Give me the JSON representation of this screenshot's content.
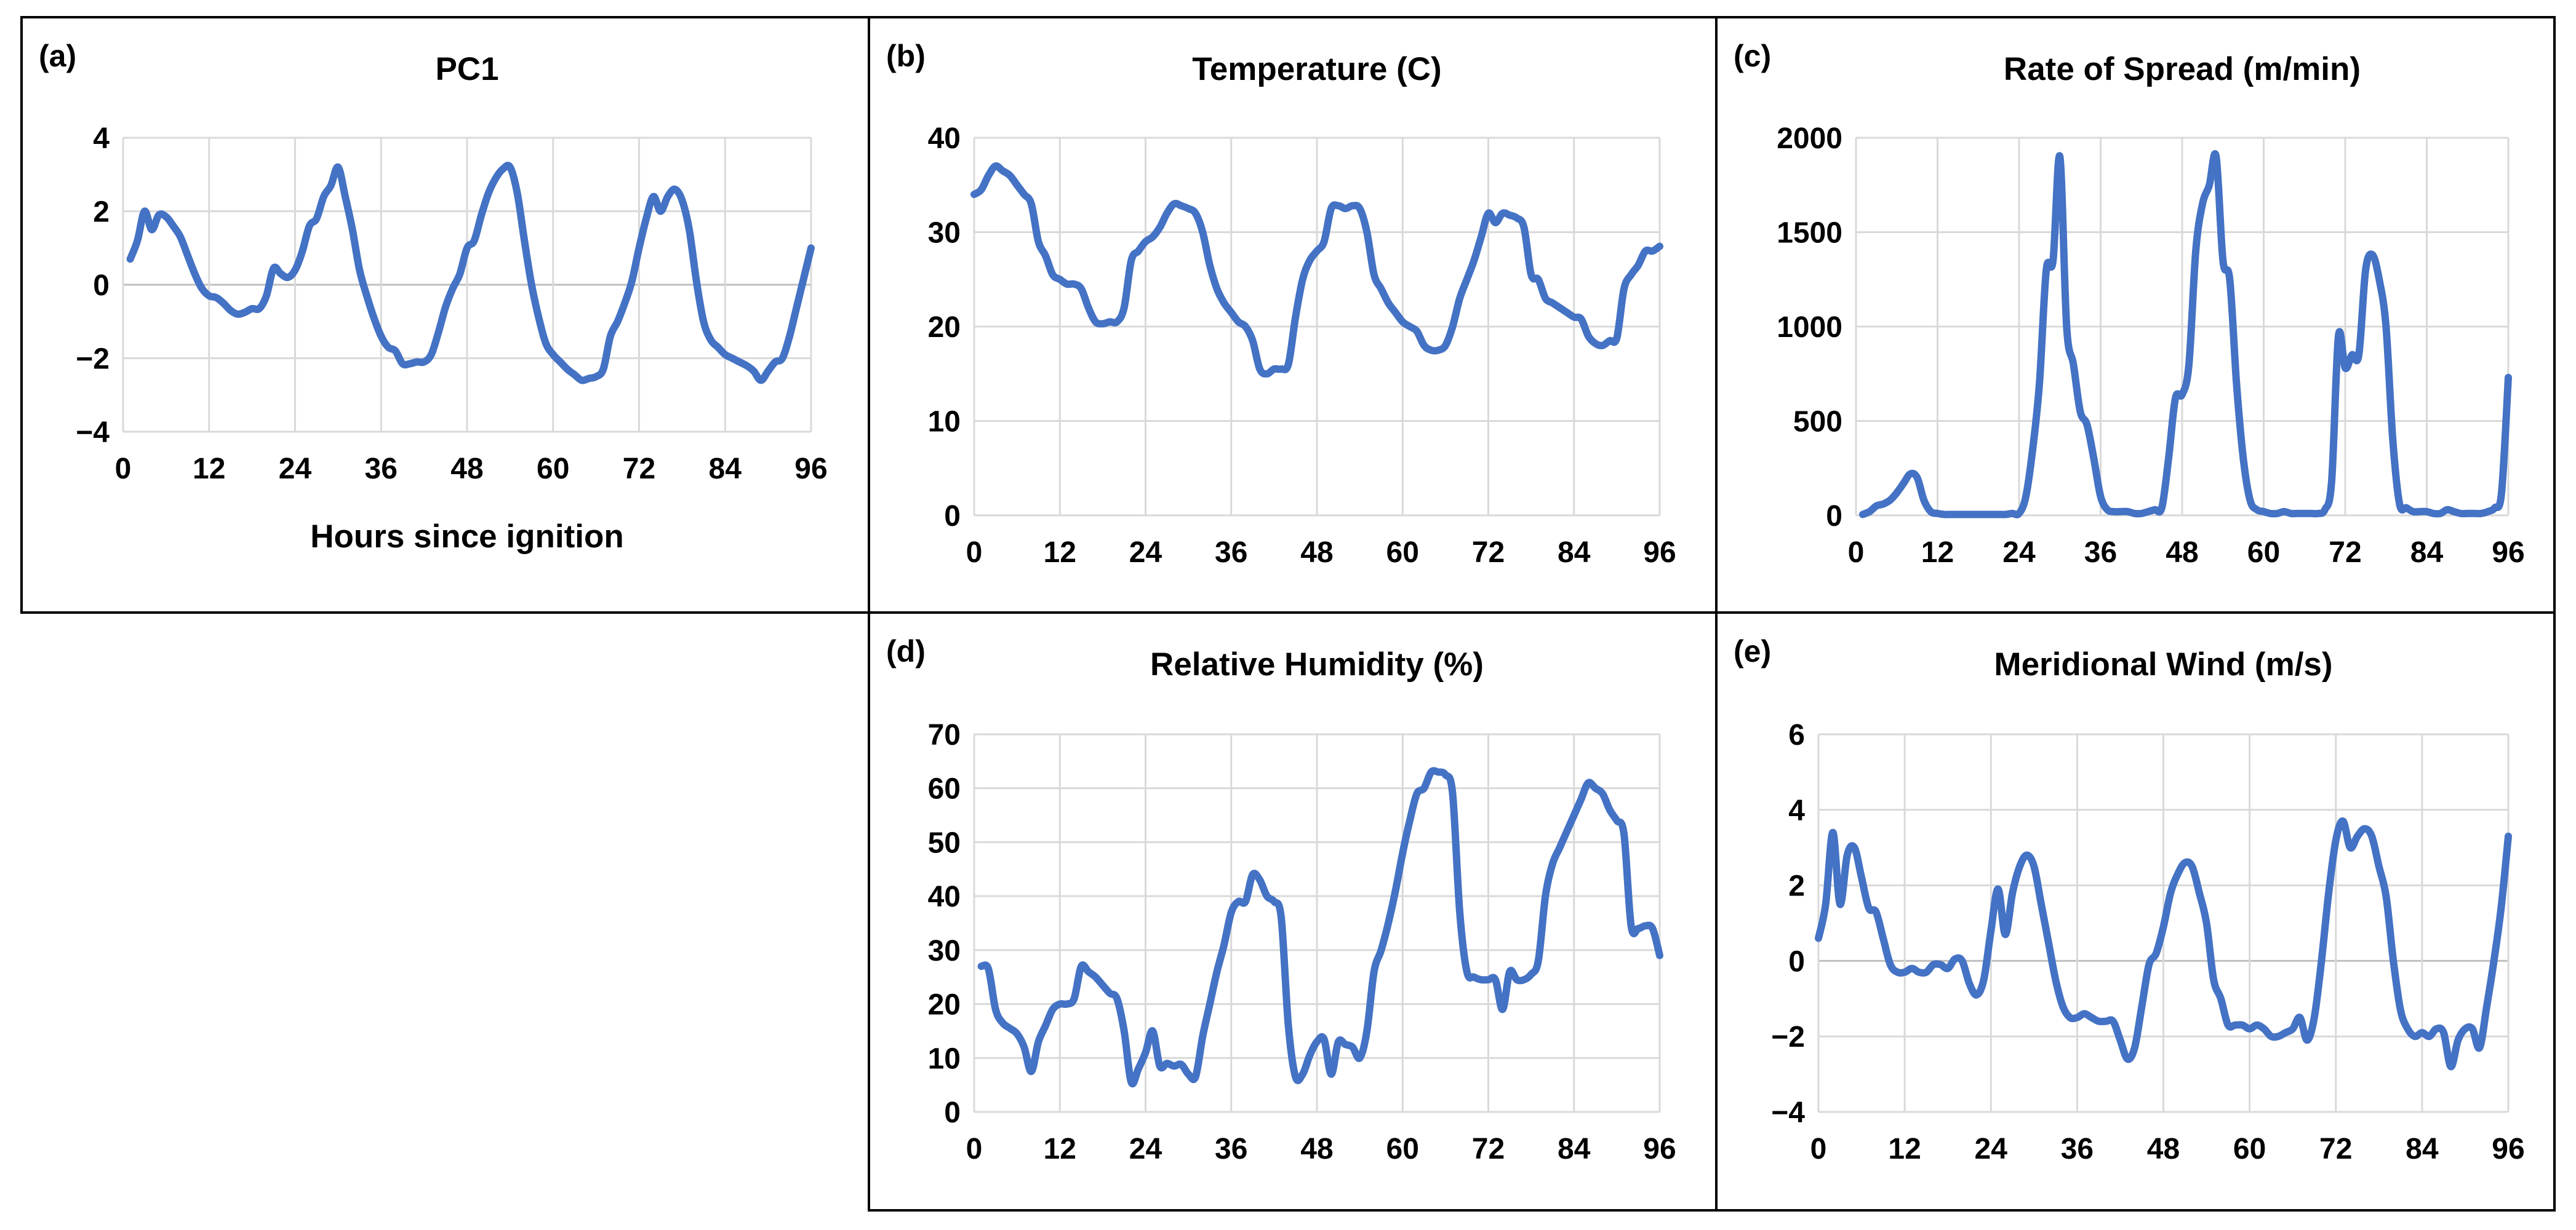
{
  "colors": {
    "series": "#4472c4",
    "grid": "#d9d9d9",
    "frame": "#000000"
  },
  "chart_data": [
    {
      "id": "a",
      "panel_label": "(a)",
      "type": "line",
      "title": "PC1",
      "xlabel": "Hours since ignition",
      "ylabel": "",
      "xlim": [
        0,
        96
      ],
      "ylim": [
        -4,
        4
      ],
      "xticks": [
        0,
        12,
        24,
        36,
        48,
        60,
        72,
        84,
        96
      ],
      "yticks": [
        -4,
        -2,
        0,
        2,
        4
      ],
      "series": [
        {
          "name": "PC1",
          "x": [
            1,
            2,
            3,
            4,
            5,
            6,
            7,
            8,
            9,
            10,
            11,
            12,
            13,
            14,
            15,
            16,
            17,
            18,
            19,
            20,
            21,
            22,
            23,
            24,
            25,
            26,
            27,
            28,
            29,
            30,
            31,
            32,
            33,
            34,
            35,
            36,
            37,
            38,
            39,
            40,
            41,
            42,
            43,
            44,
            45,
            46,
            47,
            48,
            49,
            50,
            51,
            52,
            53,
            54,
            55,
            56,
            57,
            58,
            59,
            60,
            61,
            62,
            63,
            64,
            65,
            66,
            67,
            68,
            69,
            70,
            71,
            72,
            73,
            74,
            75,
            76,
            77,
            78,
            79,
            80,
            81,
            82,
            83,
            84,
            85,
            86,
            87,
            88,
            89,
            90,
            91,
            92,
            93,
            94,
            95,
            96
          ],
          "y": [
            0.7,
            1.2,
            2.0,
            1.5,
            1.9,
            1.85,
            1.6,
            1.3,
            0.8,
            0.3,
            -0.1,
            -0.3,
            -0.35,
            -0.5,
            -0.7,
            -0.8,
            -0.75,
            -0.65,
            -0.65,
            -0.3,
            0.45,
            0.3,
            0.2,
            0.4,
            0.9,
            1.6,
            1.8,
            2.4,
            2.7,
            3.2,
            2.4,
            1.5,
            0.4,
            -0.3,
            -0.9,
            -1.4,
            -1.7,
            -1.8,
            -2.15,
            -2.15,
            -2.1,
            -2.1,
            -1.9,
            -1.3,
            -0.6,
            -0.1,
            0.3,
            1.0,
            1.2,
            1.9,
            2.5,
            2.9,
            3.15,
            3.2,
            2.5,
            1.2,
            0.0,
            -0.9,
            -1.6,
            -1.9,
            -2.1,
            -2.3,
            -2.45,
            -2.6,
            -2.55,
            -2.5,
            -2.3,
            -1.4,
            -1.0,
            -0.5,
            0.1,
            1.0,
            1.8,
            2.4,
            2.0,
            2.4,
            2.6,
            2.3,
            1.5,
            0.1,
            -1.0,
            -1.5,
            -1.7,
            -1.9,
            -2.0,
            -2.1,
            -2.2,
            -2.35,
            -2.6,
            -2.35,
            -2.1,
            -2.0,
            -1.4,
            -0.6,
            0.2,
            1.0
          ]
        }
      ]
    },
    {
      "id": "b",
      "panel_label": "(b)",
      "type": "line",
      "title": "Temperature (C)",
      "xlabel": "",
      "ylabel": "",
      "xlim": [
        0,
        96
      ],
      "ylim": [
        0,
        40
      ],
      "xticks": [
        0,
        12,
        24,
        36,
        48,
        60,
        72,
        84,
        96
      ],
      "yticks": [
        0,
        10,
        20,
        30,
        40
      ],
      "series": [
        {
          "name": "Temperature",
          "x": [
            0,
            1,
            2,
            3,
            4,
            5,
            6,
            7,
            8,
            9,
            10,
            11,
            12,
            13,
            14,
            15,
            16,
            17,
            18,
            19,
            20,
            21,
            22,
            23,
            24,
            25,
            26,
            27,
            28,
            29,
            30,
            31,
            32,
            33,
            34,
            35,
            36,
            37,
            38,
            39,
            40,
            41,
            42,
            43,
            44,
            45,
            46,
            47,
            48,
            49,
            50,
            51,
            52,
            53,
            54,
            55,
            56,
            57,
            58,
            59,
            60,
            61,
            62,
            63,
            64,
            65,
            66,
            67,
            68,
            69,
            70,
            71,
            72,
            73,
            74,
            75,
            76,
            77,
            78,
            79,
            80,
            81,
            82,
            83,
            84,
            85,
            86,
            87,
            88,
            89,
            90,
            91,
            92,
            93,
            94,
            95,
            96
          ],
          "y": [
            34,
            34.5,
            36,
            37,
            36.5,
            36,
            35,
            34,
            33,
            29,
            27.5,
            25.5,
            25,
            24.5,
            24.5,
            24,
            22,
            20.5,
            20.3,
            20.5,
            20.5,
            22,
            27,
            28,
            29,
            29.5,
            30.5,
            32,
            33,
            32.8,
            32.5,
            32,
            30,
            26.5,
            24,
            22.5,
            21.5,
            20.5,
            20,
            18.5,
            15.5,
            15,
            15.5,
            15.5,
            16,
            21,
            25,
            27,
            28,
            29,
            32.5,
            32.8,
            32.5,
            32.8,
            32.5,
            30,
            25.5,
            24,
            22.5,
            21.5,
            20.5,
            20,
            19.5,
            18,
            17.5,
            17.5,
            18,
            20,
            23,
            25,
            27,
            29.5,
            32,
            31,
            32,
            31.8,
            31.5,
            30.5,
            25.5,
            25,
            23,
            22.5,
            22,
            21.5,
            21,
            20.8,
            19,
            18.2,
            18,
            18.5,
            18.8,
            24,
            25.5,
            26.5,
            28,
            28,
            28.5
          ]
        }
      ]
    },
    {
      "id": "c",
      "panel_label": "(c)",
      "type": "line",
      "title": "Rate of Spread (m/min)",
      "xlabel": "",
      "ylabel": "",
      "xlim": [
        0,
        96
      ],
      "ylim": [
        0,
        2000
      ],
      "xticks": [
        0,
        12,
        24,
        36,
        48,
        60,
        72,
        84,
        96
      ],
      "yticks": [
        0,
        500,
        1000,
        1500,
        2000
      ],
      "series": [
        {
          "name": "Rate of Spread",
          "x": [
            1,
            2,
            3,
            4,
            5,
            6,
            7,
            8,
            9,
            10,
            11,
            12,
            13,
            14,
            15,
            16,
            17,
            18,
            19,
            20,
            21,
            22,
            23,
            24,
            25,
            26,
            27,
            28,
            29,
            30,
            31,
            32,
            33,
            34,
            35,
            36,
            37,
            38,
            39,
            40,
            41,
            42,
            43,
            44,
            45,
            46,
            47,
            48,
            49,
            50,
            51,
            52,
            53,
            54,
            55,
            56,
            57,
            58,
            59,
            60,
            61,
            62,
            63,
            64,
            65,
            66,
            67,
            68,
            69,
            70,
            71,
            72,
            73,
            74,
            75,
            76,
            77,
            78,
            79,
            80,
            81,
            82,
            83,
            84,
            85,
            86,
            87,
            88,
            89,
            90,
            91,
            92,
            93,
            94,
            95,
            96
          ],
          "y": [
            5,
            20,
            50,
            60,
            80,
            120,
            170,
            220,
            200,
            80,
            20,
            10,
            5,
            5,
            5,
            5,
            5,
            5,
            5,
            5,
            5,
            5,
            10,
            10,
            100,
            350,
            700,
            1300,
            1350,
            1900,
            1000,
            800,
            550,
            480,
            300,
            100,
            30,
            20,
            20,
            20,
            10,
            10,
            20,
            30,
            40,
            300,
            620,
            640,
            800,
            1400,
            1650,
            1750,
            1900,
            1350,
            1250,
            700,
            300,
            80,
            30,
            20,
            10,
            10,
            20,
            10,
            10,
            10,
            10,
            10,
            30,
            180,
            950,
            780,
            850,
            850,
            1300,
            1380,
            1250,
            1000,
            400,
            60,
            40,
            20,
            20,
            20,
            10,
            10,
            30,
            20,
            10,
            10,
            10,
            10,
            20,
            40,
            120,
            730
          ]
        }
      ]
    },
    {
      "id": "d",
      "panel_label": "(d)",
      "type": "line",
      "title": "Relative Humidity (%)",
      "xlabel": "",
      "ylabel": "",
      "xlim": [
        0,
        96
      ],
      "ylim": [
        0,
        70
      ],
      "xticks": [
        0,
        12,
        24,
        36,
        48,
        60,
        72,
        84,
        96
      ],
      "yticks": [
        0,
        10,
        20,
        30,
        40,
        50,
        60,
        70
      ],
      "series": [
        {
          "name": "Relative Humidity",
          "x": [
            1,
            2,
            3,
            4,
            5,
            6,
            7,
            8,
            9,
            10,
            11,
            12,
            13,
            14,
            15,
            16,
            17,
            18,
            19,
            20,
            21,
            22,
            23,
            24,
            25,
            26,
            27,
            28,
            29,
            30,
            31,
            32,
            33,
            34,
            35,
            36,
            37,
            38,
            39,
            40,
            41,
            42,
            43,
            44,
            45,
            46,
            47,
            48,
            49,
            50,
            51,
            52,
            53,
            54,
            55,
            56,
            57,
            58,
            59,
            60,
            61,
            62,
            63,
            64,
            65,
            66,
            67,
            68,
            69,
            70,
            71,
            72,
            73,
            74,
            75,
            76,
            77,
            78,
            79,
            80,
            81,
            82,
            83,
            84,
            85,
            86,
            87,
            88,
            89,
            90,
            91,
            92,
            93,
            94,
            95,
            96
          ],
          "y": [
            27,
            26.5,
            19,
            16.5,
            15.5,
            14.5,
            12,
            7.5,
            13,
            16,
            19,
            20,
            20,
            21,
            27,
            26,
            25,
            23.5,
            22,
            21,
            15,
            5.5,
            8,
            11,
            15,
            8.5,
            9,
            8.5,
            8.8,
            7,
            6.5,
            14,
            20,
            26,
            31,
            37,
            39,
            39,
            44,
            43,
            40,
            39,
            36,
            16,
            6.5,
            7,
            10.5,
            13,
            13.5,
            7,
            13,
            12.5,
            12,
            10,
            15,
            26,
            30,
            35,
            41,
            48,
            54,
            59,
            60,
            63,
            63,
            62.5,
            59,
            37,
            26,
            25,
            24.5,
            24.5,
            24.5,
            19,
            26,
            24.5,
            24.5,
            25.5,
            28,
            40,
            46,
            49,
            52,
            55,
            58,
            61,
            60,
            59,
            56,
            54,
            51.5,
            34.5,
            34,
            34.5,
            34,
            29
          ]
        }
      ]
    },
    {
      "id": "e",
      "panel_label": "(e)",
      "type": "line",
      "title": "Meridional Wind (m/s)",
      "xlabel": "",
      "ylabel": "",
      "xlim": [
        0,
        96
      ],
      "ylim": [
        -4,
        6
      ],
      "xticks": [
        0,
        12,
        24,
        36,
        48,
        60,
        72,
        84,
        96
      ],
      "yticks": [
        -4,
        -2,
        0,
        2,
        4,
        6
      ],
      "series": [
        {
          "name": "Meridional Wind",
          "x": [
            0,
            1,
            2,
            3,
            4,
            5,
            6,
            7,
            8,
            9,
            10,
            11,
            12,
            13,
            14,
            15,
            16,
            17,
            18,
            19,
            20,
            21,
            22,
            23,
            24,
            25,
            26,
            27,
            28,
            29,
            30,
            31,
            32,
            33,
            34,
            35,
            36,
            37,
            38,
            39,
            40,
            41,
            42,
            43,
            44,
            45,
            46,
            47,
            48,
            49,
            50,
            51,
            52,
            53,
            54,
            55,
            56,
            57,
            58,
            59,
            60,
            61,
            62,
            63,
            64,
            65,
            66,
            67,
            68,
            69,
            70,
            71,
            72,
            73,
            74,
            75,
            76,
            77,
            78,
            79,
            80,
            81,
            82,
            83,
            84,
            85,
            86,
            87,
            88,
            89,
            90,
            91,
            92,
            93,
            94,
            95,
            96
          ],
          "y": [
            0.6,
            1.5,
            3.4,
            1.5,
            2.8,
            3.0,
            2.2,
            1.4,
            1.3,
            0.6,
            -0.1,
            -0.3,
            -0.3,
            -0.2,
            -0.3,
            -0.3,
            -0.1,
            -0.1,
            -0.2,
            0.05,
            0.0,
            -0.6,
            -0.9,
            -0.5,
            0.8,
            1.9,
            0.7,
            1.8,
            2.5,
            2.8,
            2.5,
            1.5,
            0.5,
            -0.5,
            -1.2,
            -1.5,
            -1.5,
            -1.4,
            -1.5,
            -1.6,
            -1.6,
            -1.6,
            -2.1,
            -2.6,
            -2.3,
            -1.2,
            -0.1,
            0.2,
            0.9,
            1.8,
            2.3,
            2.6,
            2.5,
            1.8,
            1.0,
            -0.5,
            -1.0,
            -1.7,
            -1.7,
            -1.7,
            -1.8,
            -1.7,
            -1.8,
            -2.0,
            -2.0,
            -1.9,
            -1.8,
            -1.5,
            -2.1,
            -1.5,
            0.0,
            1.8,
            3.2,
            3.7,
            3.0,
            3.3,
            3.5,
            3.3,
            2.5,
            1.7,
            0.0,
            -1.3,
            -1.8,
            -2.0,
            -1.9,
            -2.0,
            -1.8,
            -1.9,
            -2.8,
            -2.1,
            -1.8,
            -1.8,
            -2.3,
            -1.2,
            0.0,
            1.4,
            3.3
          ]
        }
      ]
    }
  ]
}
